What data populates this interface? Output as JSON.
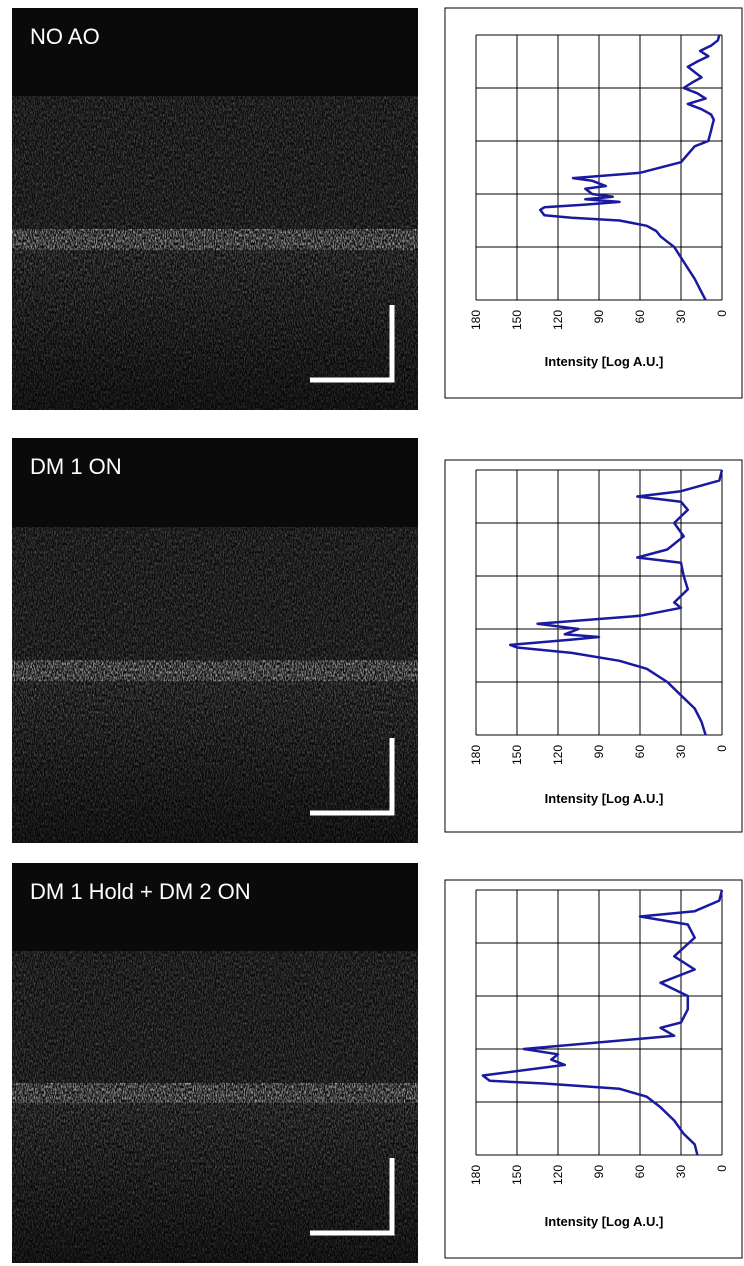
{
  "chart_data": [
    {
      "type": "line",
      "image_label": "NO AO",
      "axis_label": "Intensity [Log A.U.]",
      "color": "#1a1aa0",
      "x": [
        0,
        2,
        4,
        6,
        8,
        10,
        12,
        14,
        16,
        18,
        20,
        22,
        24,
        26,
        28,
        30,
        32,
        34,
        36,
        38,
        40,
        42,
        48,
        52,
        54,
        55,
        57,
        58,
        60,
        61,
        62,
        63,
        64,
        65,
        66,
        68,
        69,
        70,
        72,
        74,
        76,
        78,
        80,
        84,
        88,
        92,
        96,
        100
      ],
      "values": [
        2,
        3,
        8,
        16,
        10,
        18,
        25,
        20,
        15,
        22,
        28,
        18,
        12,
        25,
        15,
        8,
        6,
        7,
        8,
        9,
        10,
        20,
        30,
        60,
        109,
        95,
        85,
        100,
        95,
        80,
        100,
        75,
        100,
        130,
        133,
        130,
        110,
        75,
        55,
        48,
        45,
        40,
        35,
        30,
        25,
        20,
        16,
        12
      ],
      "xlim": [
        0,
        100
      ],
      "xticks": [
        0,
        20,
        40,
        60,
        80,
        100
      ],
      "ylim": [
        0,
        180
      ],
      "yticks": [
        0,
        30,
        60,
        90,
        120,
        150,
        180
      ],
      "y_reversed": true,
      "grid": true
    },
    {
      "type": "line",
      "image_label": "DM 1 ON",
      "axis_label": "Intensity [Log A.U.]",
      "color": "#1a1aa0",
      "x": [
        0,
        4,
        8,
        10,
        12,
        15,
        20,
        25,
        30,
        33,
        35,
        40,
        45,
        50,
        52,
        55,
        58,
        60,
        62,
        63,
        64,
        66,
        67,
        69,
        72,
        75,
        80,
        85,
        90,
        95,
        100
      ],
      "values": [
        0,
        2,
        30,
        62,
        30,
        25,
        35,
        28,
        40,
        62,
        30,
        28,
        25,
        35,
        30,
        60,
        135,
        105,
        115,
        90,
        110,
        155,
        150,
        110,
        75,
        55,
        40,
        30,
        20,
        15,
        12
      ],
      "xlim": [
        0,
        100
      ],
      "xticks": [
        0,
        20,
        40,
        60,
        80,
        100
      ],
      "ylim": [
        0,
        180
      ],
      "yticks": [
        0,
        30,
        60,
        90,
        120,
        150,
        180
      ],
      "y_reversed": true,
      "grid": true
    },
    {
      "type": "line",
      "image_label": "DM 1 Hold + DM 2 ON",
      "axis_label": "Intensity [Log A.U.]",
      "color": "#1a1aa0",
      "x": [
        0,
        4,
        8,
        10,
        13,
        18,
        25,
        30,
        35,
        40,
        45,
        50,
        52,
        55,
        60,
        62,
        64,
        66,
        70,
        72,
        73,
        75,
        78,
        82,
        87,
        92,
        96,
        100
      ],
      "values": [
        0,
        2,
        20,
        60,
        25,
        20,
        35,
        20,
        45,
        25,
        25,
        30,
        45,
        35,
        145,
        120,
        125,
        115,
        175,
        170,
        130,
        75,
        55,
        45,
        35,
        28,
        20,
        18
      ],
      "xlim": [
        0,
        100
      ],
      "xticks": [
        0,
        20,
        40,
        60,
        80,
        100
      ],
      "ylim": [
        0,
        180
      ],
      "yticks": [
        0,
        30,
        60,
        90,
        120,
        150,
        180
      ],
      "y_reversed": true,
      "grid": true
    }
  ]
}
